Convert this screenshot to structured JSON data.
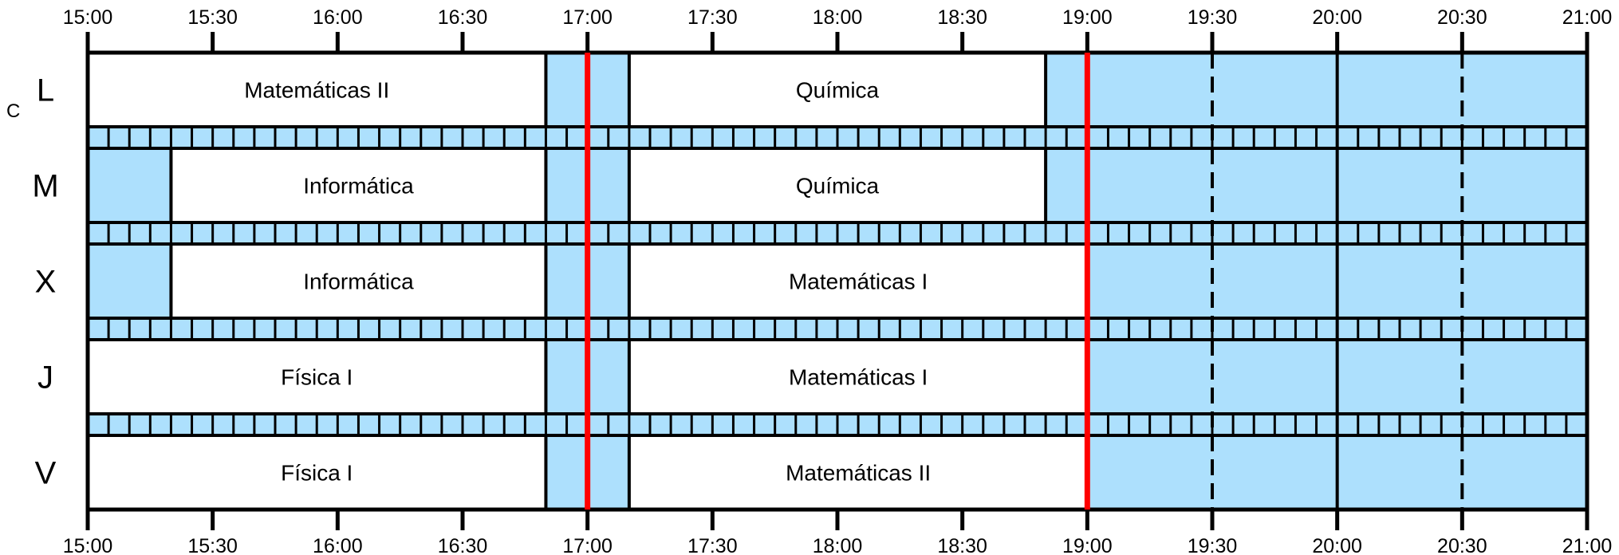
{
  "time_axis": {
    "start": "15:00",
    "end": "21:00",
    "ticks": [
      "15:00",
      "15:30",
      "16:00",
      "16:30",
      "17:00",
      "17:30",
      "18:00",
      "18:30",
      "19:00",
      "19:30",
      "20:00",
      "20:30",
      "21:00"
    ]
  },
  "days": [
    {
      "label": "L",
      "classes": [
        {
          "name": "Matemáticas II",
          "start": "15:00",
          "end": "16:50"
        },
        {
          "name": "Química",
          "start": "17:10",
          "end": "18:50"
        }
      ]
    },
    {
      "label": "M",
      "classes": [
        {
          "name": "Informática",
          "start": "15:20",
          "end": "16:50"
        },
        {
          "name": "Química",
          "start": "17:10",
          "end": "18:50"
        }
      ]
    },
    {
      "label": "X",
      "classes": [
        {
          "name": "Informática",
          "start": "15:20",
          "end": "16:50"
        },
        {
          "name": "Matemáticas I",
          "start": "17:10",
          "end": "19:00"
        }
      ]
    },
    {
      "label": "J",
      "classes": [
        {
          "name": "Física I",
          "start": "15:00",
          "end": "16:50"
        },
        {
          "name": "Matemáticas I",
          "start": "17:10",
          "end": "19:00"
        }
      ]
    },
    {
      "label": "V",
      "classes": [
        {
          "name": "Física I",
          "start": "15:00",
          "end": "16:50"
        },
        {
          "name": "Matemáticas II",
          "start": "17:10",
          "end": "19:00"
        }
      ]
    }
  ],
  "highlight_times": [
    "17:00",
    "19:00"
  ],
  "stray_label": "C",
  "colors": {
    "free": "#ade0fd",
    "class": "#ffffff",
    "highlight": "#ff0000",
    "line": "#000000"
  }
}
